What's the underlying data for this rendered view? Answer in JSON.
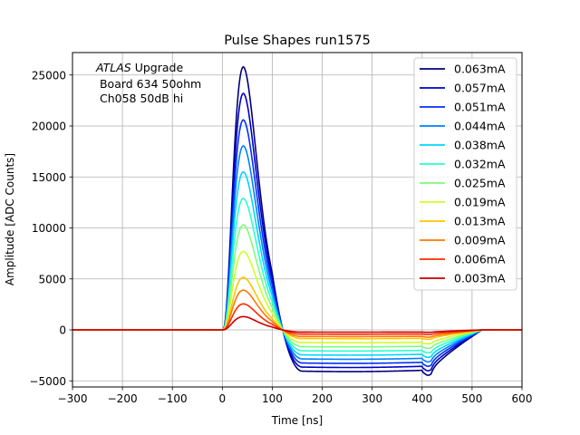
{
  "chart_data": {
    "type": "line",
    "title": "Pulse Shapes run1575",
    "xlabel": "Time [ns]",
    "ylabel": "Amplitude [ADC Counts]",
    "xlim": [
      -300,
      600
    ],
    "ylim": [
      -5600,
      27200
    ],
    "xticks": [
      -300,
      -200,
      -100,
      0,
      100,
      200,
      300,
      400,
      500,
      600
    ],
    "xtick_labels": [
      "−300",
      "−200",
      "−100",
      "0",
      "100",
      "200",
      "300",
      "400",
      "500",
      "600"
    ],
    "yticks": [
      -5000,
      0,
      5000,
      10000,
      15000,
      20000,
      25000
    ],
    "ytick_labels": [
      "−5000",
      "0",
      "5000",
      "10000",
      "15000",
      "20000",
      "25000"
    ],
    "grid": true,
    "legend_position": "top-right",
    "annotation": {
      "atlas": "ATLAS",
      "upgrade": " Upgrade",
      "line2": " Board 634 50ohm",
      "line3": " Ch058 50dB hi"
    },
    "pulse_model": {
      "peak_time_ns": 42,
      "undershoot_end_ns": 410,
      "undershoot_ratio": 0.157
    },
    "series": [
      {
        "name": "0.063mA",
        "color": "#00007f",
        "peak": 25800,
        "undershoot": -4050
      },
      {
        "name": "0.057mA",
        "color": "#0000c8",
        "peak": 23200,
        "undershoot": -3650
      },
      {
        "name": "0.051mA",
        "color": "#0030ff",
        "peak": 20600,
        "undershoot": -3250
      },
      {
        "name": "0.044mA",
        "color": "#0080ff",
        "peak": 18050,
        "undershoot": -2850
      },
      {
        "name": "0.038mA",
        "color": "#00d4ff",
        "peak": 15500,
        "undershoot": -2450
      },
      {
        "name": "0.032mA",
        "color": "#29ffcd",
        "peak": 12900,
        "undershoot": -2050
      },
      {
        "name": "0.025mA",
        "color": "#7cff79",
        "peak": 10300,
        "undershoot": -1650
      },
      {
        "name": "0.019mA",
        "color": "#cdff29",
        "peak": 7700,
        "undershoot": -1250
      },
      {
        "name": "0.013mA",
        "color": "#ffc400",
        "peak": 5150,
        "undershoot": -850
      },
      {
        "name": "0.009mA",
        "color": "#ff7700",
        "peak": 3900,
        "undershoot": -650
      },
      {
        "name": "0.006mA",
        "color": "#ff2900",
        "peak": 2550,
        "undershoot": -420
      },
      {
        "name": "0.003mA",
        "color": "#c80000",
        "peak": 1300,
        "undershoot": -220
      }
    ]
  }
}
